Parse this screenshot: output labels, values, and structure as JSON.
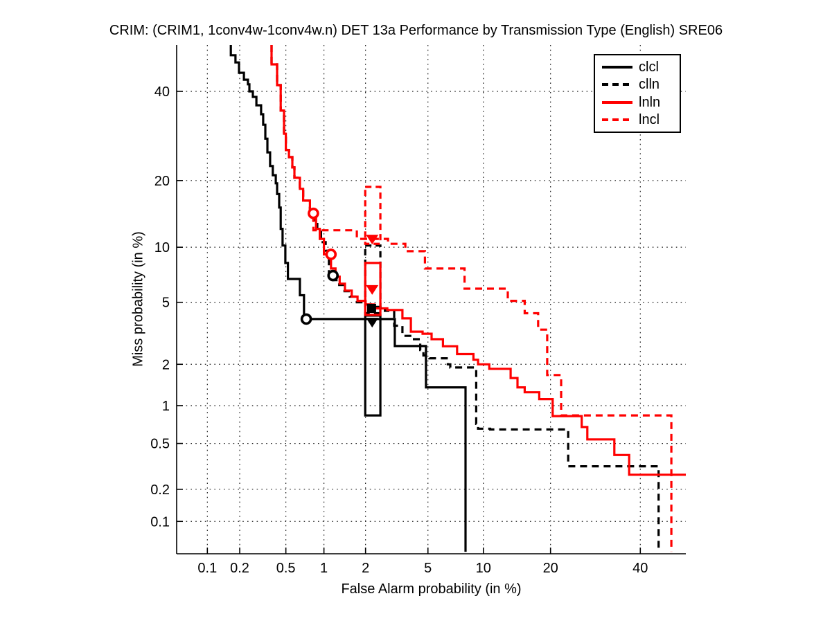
{
  "title": "CRIM: (CRIM1, 1conv4w-1conv4w.n) DET 13a Performance by Transmission Type (English) SRE06",
  "axes": {
    "xlabel": "False Alarm probability (in %)",
    "ylabel": "Miss probability (in %)",
    "x_tick_values": [
      0.1,
      0.2,
      0.5,
      1,
      2,
      5,
      10,
      20,
      40
    ],
    "x_tick_labels": [
      "0.1",
      "0.2",
      "0.5",
      "1",
      "2",
      "5",
      "10",
      "20",
      "40"
    ],
    "y_tick_values": [
      0.1,
      0.2,
      0.5,
      1,
      2,
      5,
      10,
      20,
      40
    ],
    "y_tick_labels": [
      "0.1",
      "0.2",
      "0.5",
      "1",
      "2",
      "5",
      "10",
      "20",
      "40"
    ],
    "grid": "dotted"
  },
  "colors": {
    "black": "#000000",
    "red": "#ff0000",
    "background": "#ffffff"
  },
  "chart_data": {
    "type": "line",
    "subtype": "DET-curve (probit-probit step plot)",
    "title": "CRIM: (CRIM1, 1conv4w-1conv4w.n) DET 13a Performance by Transmission Type (English) SRE06",
    "xlabel": "False Alarm probability (in %)",
    "ylabel": "Miss probability (in %)",
    "xlim": [
      0.05,
      51.8
    ],
    "ylim": [
      0.048,
      52.1
    ],
    "legend_position": "upper right",
    "series": [
      {
        "name": "clcl",
        "color": "#000000",
        "style": "solid",
        "points": [
          [
            0.166,
            52.1
          ],
          [
            0.183,
            49.4
          ],
          [
            0.197,
            47.5
          ],
          [
            0.218,
            44.8
          ],
          [
            0.237,
            43.0
          ],
          [
            0.244,
            41.8
          ],
          [
            0.262,
            40.0
          ],
          [
            0.281,
            38.6
          ],
          [
            0.309,
            36.5
          ],
          [
            0.322,
            34.3
          ],
          [
            0.336,
            31.8
          ],
          [
            0.35,
            28.6
          ],
          [
            0.369,
            25.6
          ],
          [
            0.389,
            22.8
          ],
          [
            0.412,
            21.0
          ],
          [
            0.423,
            19.5
          ],
          [
            0.44,
            17.6
          ],
          [
            0.453,
            15.4
          ],
          [
            0.47,
            12.3
          ],
          [
            0.495,
            10.2
          ],
          [
            0.52,
            8.3
          ],
          [
            0.55,
            6.8
          ],
          [
            0.65,
            6.8
          ],
          [
            0.65,
            5.5
          ],
          [
            0.7,
            5.5
          ],
          [
            0.7,
            4.2
          ],
          [
            0.73,
            3.96
          ],
          [
            3.13,
            3.96
          ],
          [
            3.13,
            2.66
          ],
          [
            4.87,
            2.66
          ],
          [
            4.87,
            1.37
          ],
          [
            8.1,
            1.37
          ],
          [
            8.1,
            0.05
          ]
        ],
        "min_dcf_point": {
          "fa": 0.73,
          "miss": 3.96,
          "shape": "circle"
        },
        "act_dcf_point": {
          "fa": 2.22,
          "miss": 3.8,
          "shape": "triangle-down"
        },
        "dcf_box": {
          "fa": [
            1.99,
            2.52
          ],
          "miss": [
            0.84,
            4.16
          ]
        }
      },
      {
        "name": "clln",
        "color": "#000000",
        "style": "dashed",
        "points": [
          [
            0.38,
            52.1
          ],
          [
            0.423,
            47.0
          ],
          [
            0.453,
            41.6
          ],
          [
            0.483,
            35.2
          ],
          [
            0.5,
            29.7
          ],
          [
            0.53,
            26.1
          ],
          [
            0.565,
            24.6
          ],
          [
            0.587,
            22.5
          ],
          [
            0.65,
            20.5
          ],
          [
            0.69,
            18.5
          ],
          [
            0.78,
            16.5
          ],
          [
            0.83,
            15.1
          ],
          [
            0.89,
            13.5
          ],
          [
            0.95,
            11.9
          ],
          [
            1.03,
            10.6
          ],
          [
            1.09,
            9.6
          ],
          [
            1.17,
            7.1
          ],
          [
            1.3,
            6.7
          ],
          [
            1.42,
            6.3
          ],
          [
            1.55,
            5.8
          ],
          [
            1.74,
            5.4
          ],
          [
            2.0,
            5.0
          ],
          [
            2.3,
            4.85
          ],
          [
            2.7,
            4.7
          ],
          [
            3.1,
            4.45
          ],
          [
            3.5,
            3.6
          ],
          [
            4.0,
            3.1
          ],
          [
            4.5,
            2.95
          ],
          [
            4.7,
            2.5
          ],
          [
            5.1,
            2.3
          ],
          [
            6.5,
            2.2
          ],
          [
            6.7,
            2.0
          ],
          [
            9.2,
            1.9
          ],
          [
            9.4,
            0.72
          ],
          [
            10.8,
            0.66
          ],
          [
            23.4,
            0.65
          ],
          [
            23.4,
            0.32
          ],
          [
            44.7,
            0.32
          ],
          [
            44.7,
            0.05
          ]
        ],
        "min_dcf_point": {
          "fa": 1.17,
          "miss": 7.1,
          "shape": "circle"
        },
        "act_dcf_point": {
          "fa": 2.2,
          "miss": 4.6,
          "shape": "square"
        },
        "dcf_box": {
          "fa": [
            1.99,
            2.52
          ],
          "miss": [
            4.3,
            10.2
          ]
        }
      },
      {
        "name": "lnln",
        "color": "#ff0000",
        "style": "solid",
        "points": [
          [
            0.38,
            52.1
          ],
          [
            0.423,
            47.0
          ],
          [
            0.453,
            41.6
          ],
          [
            0.483,
            35.2
          ],
          [
            0.5,
            29.7
          ],
          [
            0.53,
            26.1
          ],
          [
            0.565,
            24.6
          ],
          [
            0.587,
            22.5
          ],
          [
            0.65,
            20.5
          ],
          [
            0.69,
            18.5
          ],
          [
            0.78,
            16.5
          ],
          [
            0.83,
            15.1
          ],
          [
            0.87,
            13.8
          ],
          [
            0.93,
            12.3
          ],
          [
            1.0,
            11.0
          ],
          [
            1.13,
            9.2
          ],
          [
            1.22,
            7.75
          ],
          [
            1.31,
            7.0
          ],
          [
            1.43,
            6.4
          ],
          [
            1.6,
            5.85
          ],
          [
            1.76,
            5.4
          ],
          [
            2.0,
            5.1
          ],
          [
            2.3,
            4.85
          ],
          [
            2.8,
            4.6
          ],
          [
            3.5,
            4.5
          ],
          [
            3.95,
            4.0
          ],
          [
            4.65,
            3.3
          ],
          [
            5.25,
            3.2
          ],
          [
            6.1,
            2.95
          ],
          [
            7.3,
            2.65
          ],
          [
            8.9,
            2.35
          ],
          [
            9.4,
            2.15
          ],
          [
            10.7,
            2.0
          ],
          [
            13.5,
            1.86
          ],
          [
            14.5,
            1.6
          ],
          [
            15.6,
            1.37
          ],
          [
            18.0,
            1.26
          ],
          [
            18.0,
            1.12
          ],
          [
            20.4,
            1.12
          ],
          [
            20.4,
            0.83
          ],
          [
            26.2,
            0.83
          ],
          [
            26.2,
            0.68
          ],
          [
            27.4,
            0.68
          ],
          [
            27.4,
            0.54
          ],
          [
            33.6,
            0.54
          ],
          [
            33.6,
            0.4
          ],
          [
            37.2,
            0.4
          ],
          [
            37.2,
            0.27
          ],
          [
            51.8,
            0.27
          ]
        ],
        "min_dcf_point": {
          "fa": 1.13,
          "miss": 9.2,
          "shape": "circle"
        },
        "act_dcf_point": {
          "fa": 2.22,
          "miss": 5.95,
          "shape": "triangle-down"
        },
        "dcf_box": {
          "fa": [
            1.99,
            2.52
          ],
          "miss": [
            4.2,
            8.3
          ]
        }
      },
      {
        "name": "lncl",
        "color": "#ff0000",
        "style": "dashed",
        "points": [
          [
            0.38,
            52.1
          ],
          [
            0.423,
            47.0
          ],
          [
            0.453,
            41.6
          ],
          [
            0.483,
            35.2
          ],
          [
            0.5,
            29.7
          ],
          [
            0.53,
            26.1
          ],
          [
            0.565,
            24.6
          ],
          [
            0.587,
            22.5
          ],
          [
            0.65,
            20.5
          ],
          [
            0.69,
            18.5
          ],
          [
            0.78,
            16.5
          ],
          [
            0.83,
            15.1
          ],
          [
            0.83,
            14.5
          ],
          [
            1.03,
            12.1
          ],
          [
            1.74,
            12.1
          ],
          [
            1.74,
            11.0
          ],
          [
            2.83,
            11.0
          ],
          [
            2.83,
            10.4
          ],
          [
            3.65,
            10.4
          ],
          [
            3.65,
            9.55
          ],
          [
            4.8,
            9.55
          ],
          [
            4.8,
            7.75
          ],
          [
            8.0,
            7.75
          ],
          [
            8.0,
            6.0
          ],
          [
            13.1,
            6.0
          ],
          [
            13.1,
            5.1
          ],
          [
            15.6,
            5.1
          ],
          [
            15.6,
            4.3
          ],
          [
            17.8,
            4.3
          ],
          [
            17.8,
            3.4
          ],
          [
            19.4,
            3.4
          ],
          [
            19.4,
            1.68
          ],
          [
            22.0,
            1.68
          ],
          [
            22.0,
            0.84
          ],
          [
            48.0,
            0.84
          ],
          [
            48.0,
            0.05
          ]
        ],
        "min_dcf_point": {
          "fa": 0.83,
          "miss": 14.5,
          "shape": "circle"
        },
        "act_dcf_point": {
          "fa": 2.22,
          "miss": 11.0,
          "shape": "triangle-down"
        },
        "dcf_box": {
          "fa": [
            1.99,
            2.52
          ],
          "miss": [
            10.4,
            18.85
          ]
        }
      }
    ]
  }
}
